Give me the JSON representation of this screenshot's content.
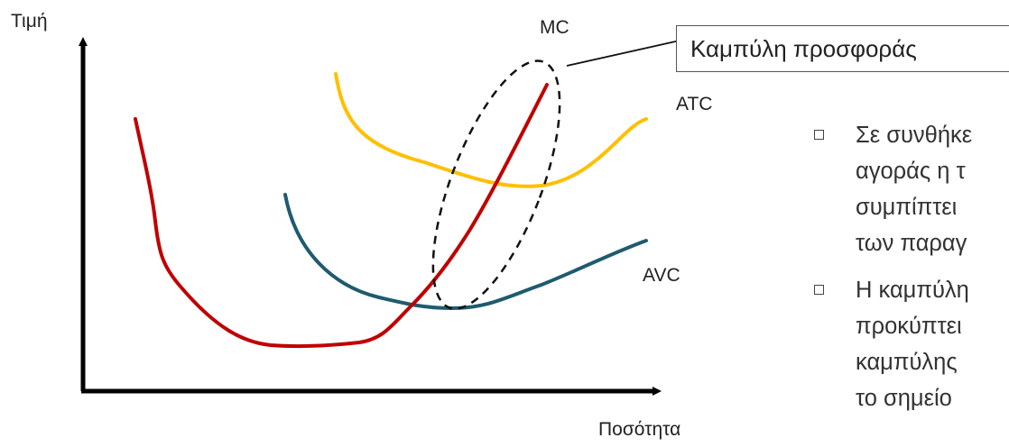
{
  "diagram": {
    "y_axis_label": "Τιμή",
    "x_axis_label": "Ποσότητα",
    "curves": [
      {
        "name": "MC",
        "color": "#c00000"
      },
      {
        "name": "ATC",
        "color": "#ffc000"
      },
      {
        "name": "AVC",
        "color": "#1f5b6e"
      }
    ],
    "dashed_ellipse_color": "#111111",
    "callout_text": "Καμπύλη προσφοράς"
  },
  "bullets": [
    {
      "lines": [
        "Σε συνθήκε",
        "αγοράς η τ",
        "συμπίπτει",
        "των παραγ"
      ]
    },
    {
      "lines": [
        "Η καμπύλη",
        "προκύπτει",
        "καμπύλης",
        "το σημείο"
      ]
    }
  ]
}
